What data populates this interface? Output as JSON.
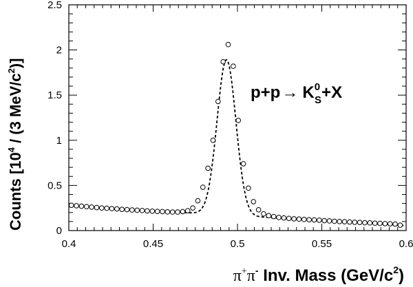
{
  "chart_data": {
    "type": "scatter",
    "annotation": {
      "prefix": "p+p",
      "arrow": "→",
      "particle": "K",
      "particle_sup": "0",
      "particle_sub": "S",
      "suffix": "+X"
    },
    "xlabel": {
      "symbol_pi_plus": "π",
      "plus": "+",
      "symbol_pi_minus": "π",
      "minus": "-",
      "text": " Inv. Mass (GeV/c",
      "sup": "2",
      "close": ")"
    },
    "ylabel": {
      "text": "Counts [10",
      "sup1": "4",
      "mid": " / (3 MeV/c",
      "sup2": "2",
      "close": ")]"
    },
    "xlim": [
      0.4,
      0.6
    ],
    "ylim": [
      0,
      2.5
    ],
    "x_ticks": [
      {
        "value": 0.4,
        "label": "0.4"
      },
      {
        "value": 0.45,
        "label": "0.45"
      },
      {
        "value": 0.5,
        "label": "0.5"
      },
      {
        "value": 0.55,
        "label": "0.55"
      },
      {
        "value": 0.6,
        "label": "0.6"
      }
    ],
    "y_ticks": [
      {
        "value": 0,
        "label": "0"
      },
      {
        "value": 0.5,
        "label": "0.5"
      },
      {
        "value": 1,
        "label": "1"
      },
      {
        "value": 1.5,
        "label": "1.5"
      },
      {
        "value": 2,
        "label": "2"
      },
      {
        "value": 2.5,
        "label": "2.5"
      }
    ],
    "grid": false,
    "series": [
      {
        "marker": "open-circle",
        "x": [
          0.4015,
          0.4045,
          0.4075,
          0.4105,
          0.4135,
          0.4165,
          0.4195,
          0.4225,
          0.4255,
          0.4285,
          0.4315,
          0.4345,
          0.4375,
          0.4405,
          0.4435,
          0.4465,
          0.4495,
          0.4525,
          0.4555,
          0.4585,
          0.4615,
          0.4645,
          0.4675,
          0.4705,
          0.4735,
          0.4765,
          0.4795,
          0.4825,
          0.4855,
          0.4885,
          0.4915,
          0.4945,
          0.4975,
          0.5005,
          0.5035,
          0.5065,
          0.5095,
          0.5125,
          0.5155,
          0.5185,
          0.5215,
          0.5245,
          0.5275,
          0.5305,
          0.5335,
          0.5365,
          0.5395,
          0.5425,
          0.5455,
          0.5485,
          0.5515,
          0.5545,
          0.5575,
          0.5605,
          0.5635,
          0.5665,
          0.5695,
          0.5725,
          0.5755,
          0.5785,
          0.5815,
          0.5845,
          0.5875,
          0.5905,
          0.5935,
          0.5965
        ],
        "y": [
          0.28,
          0.275,
          0.27,
          0.265,
          0.26,
          0.255,
          0.25,
          0.247,
          0.243,
          0.24,
          0.235,
          0.232,
          0.228,
          0.225,
          0.222,
          0.218,
          0.215,
          0.212,
          0.21,
          0.207,
          0.205,
          0.205,
          0.21,
          0.22,
          0.25,
          0.33,
          0.48,
          0.69,
          1.0,
          1.43,
          1.87,
          2.06,
          1.82,
          1.22,
          0.74,
          0.47,
          0.32,
          0.23,
          0.185,
          0.165,
          0.155,
          0.145,
          0.14,
          0.135,
          0.13,
          0.127,
          0.123,
          0.12,
          0.118,
          0.115,
          0.11,
          0.107,
          0.103,
          0.1,
          0.098,
          0.095,
          0.092,
          0.09,
          0.087,
          0.085,
          0.082,
          0.08,
          0.077,
          0.075,
          0.072,
          0.06
        ]
      }
    ],
    "fit": {
      "style": "dashed",
      "model": "gaussian-plus-background",
      "mean": 0.4935,
      "sigma": 0.0056,
      "amplitude": 1.72,
      "background_at_xmin": 0.275,
      "background_slope": -1.1
    }
  }
}
